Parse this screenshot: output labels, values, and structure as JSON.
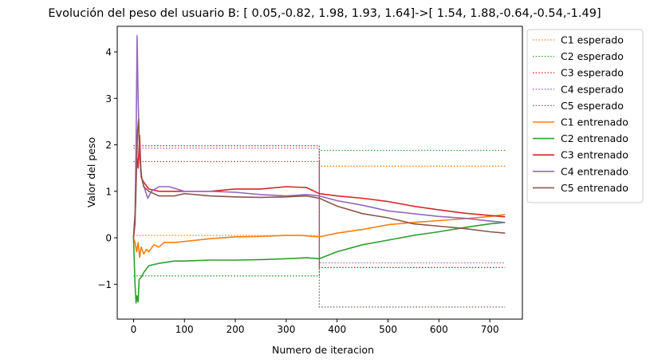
{
  "chart_data": {
    "type": "line",
    "title": "Evolución del peso del usuario B: [ 0.05,-0.82, 1.98, 1.93, 1.64]->[ 1.54, 1.88,-0.64,-0.54,-1.49]",
    "xlabel": "Numero de iteracion",
    "ylabel": "Valor del peso",
    "xlim": [
      -32,
      764
    ],
    "ylim": [
      -1.75,
      4.55
    ],
    "xticks": [
      0,
      100,
      200,
      300,
      400,
      500,
      600,
      700
    ],
    "yticks": [
      -1,
      0,
      1,
      2,
      3,
      4
    ],
    "ytick_labels": [
      "−1",
      "0",
      "1",
      "2",
      "3",
      "4"
    ],
    "grid": false,
    "legend_position": "outside-right",
    "switch_iteration": 365,
    "series": [
      {
        "name": "C1 esperado",
        "color": "#ff7f0e",
        "style": "dotted",
        "points": [
          [
            0,
            0.05
          ],
          [
            365,
            0.05
          ],
          [
            365,
            1.54
          ],
          [
            730,
            1.54
          ]
        ]
      },
      {
        "name": "C2 esperado",
        "color": "#2ca02c",
        "style": "dotted",
        "points": [
          [
            0,
            -0.82
          ],
          [
            365,
            -0.82
          ],
          [
            365,
            1.88
          ],
          [
            730,
            1.88
          ]
        ]
      },
      {
        "name": "C3 esperado",
        "color": "#d62728",
        "style": "dotted",
        "points": [
          [
            0,
            1.98
          ],
          [
            365,
            1.98
          ],
          [
            365,
            -0.64
          ],
          [
            730,
            -0.64
          ]
        ]
      },
      {
        "name": "C4 esperado",
        "color": "#9467bd",
        "style": "dotted",
        "points": [
          [
            0,
            1.93
          ],
          [
            365,
            1.93
          ],
          [
            365,
            -0.54
          ],
          [
            730,
            -0.54
          ]
        ]
      },
      {
        "name": "C5 esperado",
        "color": "#8c564b",
        "style": "dotted",
        "points": [
          [
            0,
            1.64
          ],
          [
            365,
            1.64
          ],
          [
            365,
            -1.49
          ],
          [
            730,
            -1.49
          ]
        ]
      },
      {
        "name": "C1 entrenado",
        "color": "#ff7f0e",
        "style": "solid",
        "points": [
          [
            0,
            0.0
          ],
          [
            3,
            -0.1
          ],
          [
            6,
            -0.3
          ],
          [
            9,
            -0.1
          ],
          [
            12,
            -0.42
          ],
          [
            15,
            -0.2
          ],
          [
            20,
            -0.35
          ],
          [
            25,
            -0.25
          ],
          [
            30,
            -0.3
          ],
          [
            40,
            -0.15
          ],
          [
            50,
            -0.2
          ],
          [
            60,
            -0.1
          ],
          [
            80,
            -0.1
          ],
          [
            100,
            -0.08
          ],
          [
            150,
            -0.02
          ],
          [
            200,
            0.02
          ],
          [
            250,
            0.03
          ],
          [
            300,
            0.05
          ],
          [
            330,
            0.05
          ],
          [
            365,
            0.02
          ],
          [
            400,
            0.1
          ],
          [
            450,
            0.18
          ],
          [
            500,
            0.28
          ],
          [
            550,
            0.33
          ],
          [
            600,
            0.37
          ],
          [
            650,
            0.41
          ],
          [
            700,
            0.46
          ],
          [
            730,
            0.5
          ]
        ]
      },
      {
        "name": "C2 entrenado",
        "color": "#2ca02c",
        "style": "solid",
        "points": [
          [
            0,
            0.0
          ],
          [
            3,
            -1.0
          ],
          [
            5,
            -1.4
          ],
          [
            7,
            -1.25
          ],
          [
            9,
            -1.38
          ],
          [
            11,
            -0.9
          ],
          [
            15,
            -0.85
          ],
          [
            20,
            -0.75
          ],
          [
            30,
            -0.6
          ],
          [
            50,
            -0.55
          ],
          [
            80,
            -0.5
          ],
          [
            100,
            -0.5
          ],
          [
            150,
            -0.48
          ],
          [
            200,
            -0.48
          ],
          [
            250,
            -0.47
          ],
          [
            300,
            -0.45
          ],
          [
            340,
            -0.43
          ],
          [
            365,
            -0.45
          ],
          [
            400,
            -0.3
          ],
          [
            450,
            -0.15
          ],
          [
            500,
            -0.05
          ],
          [
            550,
            0.05
          ],
          [
            600,
            0.13
          ],
          [
            650,
            0.22
          ],
          [
            700,
            0.3
          ],
          [
            730,
            0.33
          ]
        ]
      },
      {
        "name": "C3 entrenado",
        "color": "#d62728",
        "style": "solid",
        "points": [
          [
            0,
            0.0
          ],
          [
            3,
            0.3
          ],
          [
            6,
            1.8
          ],
          [
            9,
            1.5
          ],
          [
            12,
            2.2
          ],
          [
            15,
            1.3
          ],
          [
            20,
            1.2
          ],
          [
            30,
            1.05
          ],
          [
            50,
            1.0
          ],
          [
            80,
            1.0
          ],
          [
            100,
            1.0
          ],
          [
            150,
            1.0
          ],
          [
            200,
            1.05
          ],
          [
            250,
            1.05
          ],
          [
            300,
            1.1
          ],
          [
            340,
            1.08
          ],
          [
            365,
            0.95
          ],
          [
            400,
            0.9
          ],
          [
            450,
            0.85
          ],
          [
            500,
            0.78
          ],
          [
            550,
            0.68
          ],
          [
            600,
            0.6
          ],
          [
            650,
            0.53
          ],
          [
            700,
            0.48
          ],
          [
            730,
            0.45
          ]
        ]
      },
      {
        "name": "C4 entrenado",
        "color": "#9467bd",
        "style": "solid",
        "points": [
          [
            0,
            0.0
          ],
          [
            3,
            0.5
          ],
          [
            5,
            2.0
          ],
          [
            7,
            4.35
          ],
          [
            9,
            3.0
          ],
          [
            11,
            2.2
          ],
          [
            14,
            1.4
          ],
          [
            18,
            1.2
          ],
          [
            22,
            1.05
          ],
          [
            28,
            0.85
          ],
          [
            35,
            1.0
          ],
          [
            50,
            1.1
          ],
          [
            70,
            1.1
          ],
          [
            100,
            1.0
          ],
          [
            150,
            1.0
          ],
          [
            200,
            0.98
          ],
          [
            250,
            0.93
          ],
          [
            300,
            0.9
          ],
          [
            340,
            0.93
          ],
          [
            365,
            0.9
          ],
          [
            400,
            0.8
          ],
          [
            450,
            0.7
          ],
          [
            500,
            0.58
          ],
          [
            550,
            0.52
          ],
          [
            600,
            0.46
          ],
          [
            650,
            0.42
          ],
          [
            700,
            0.36
          ],
          [
            730,
            0.33
          ]
        ]
      },
      {
        "name": "C5 entrenado",
        "color": "#8c564b",
        "style": "solid",
        "points": [
          [
            0,
            0.0
          ],
          [
            4,
            0.7
          ],
          [
            8,
            2.3
          ],
          [
            10,
            2.55
          ],
          [
            12,
            1.8
          ],
          [
            16,
            1.3
          ],
          [
            20,
            1.1
          ],
          [
            30,
            1.0
          ],
          [
            50,
            0.9
          ],
          [
            80,
            0.9
          ],
          [
            100,
            0.95
          ],
          [
            150,
            0.9
          ],
          [
            200,
            0.88
          ],
          [
            250,
            0.87
          ],
          [
            300,
            0.88
          ],
          [
            340,
            0.9
          ],
          [
            365,
            0.85
          ],
          [
            400,
            0.68
          ],
          [
            450,
            0.52
          ],
          [
            500,
            0.43
          ],
          [
            550,
            0.3
          ],
          [
            600,
            0.25
          ],
          [
            650,
            0.2
          ],
          [
            700,
            0.13
          ],
          [
            730,
            0.1
          ]
        ]
      }
    ]
  }
}
